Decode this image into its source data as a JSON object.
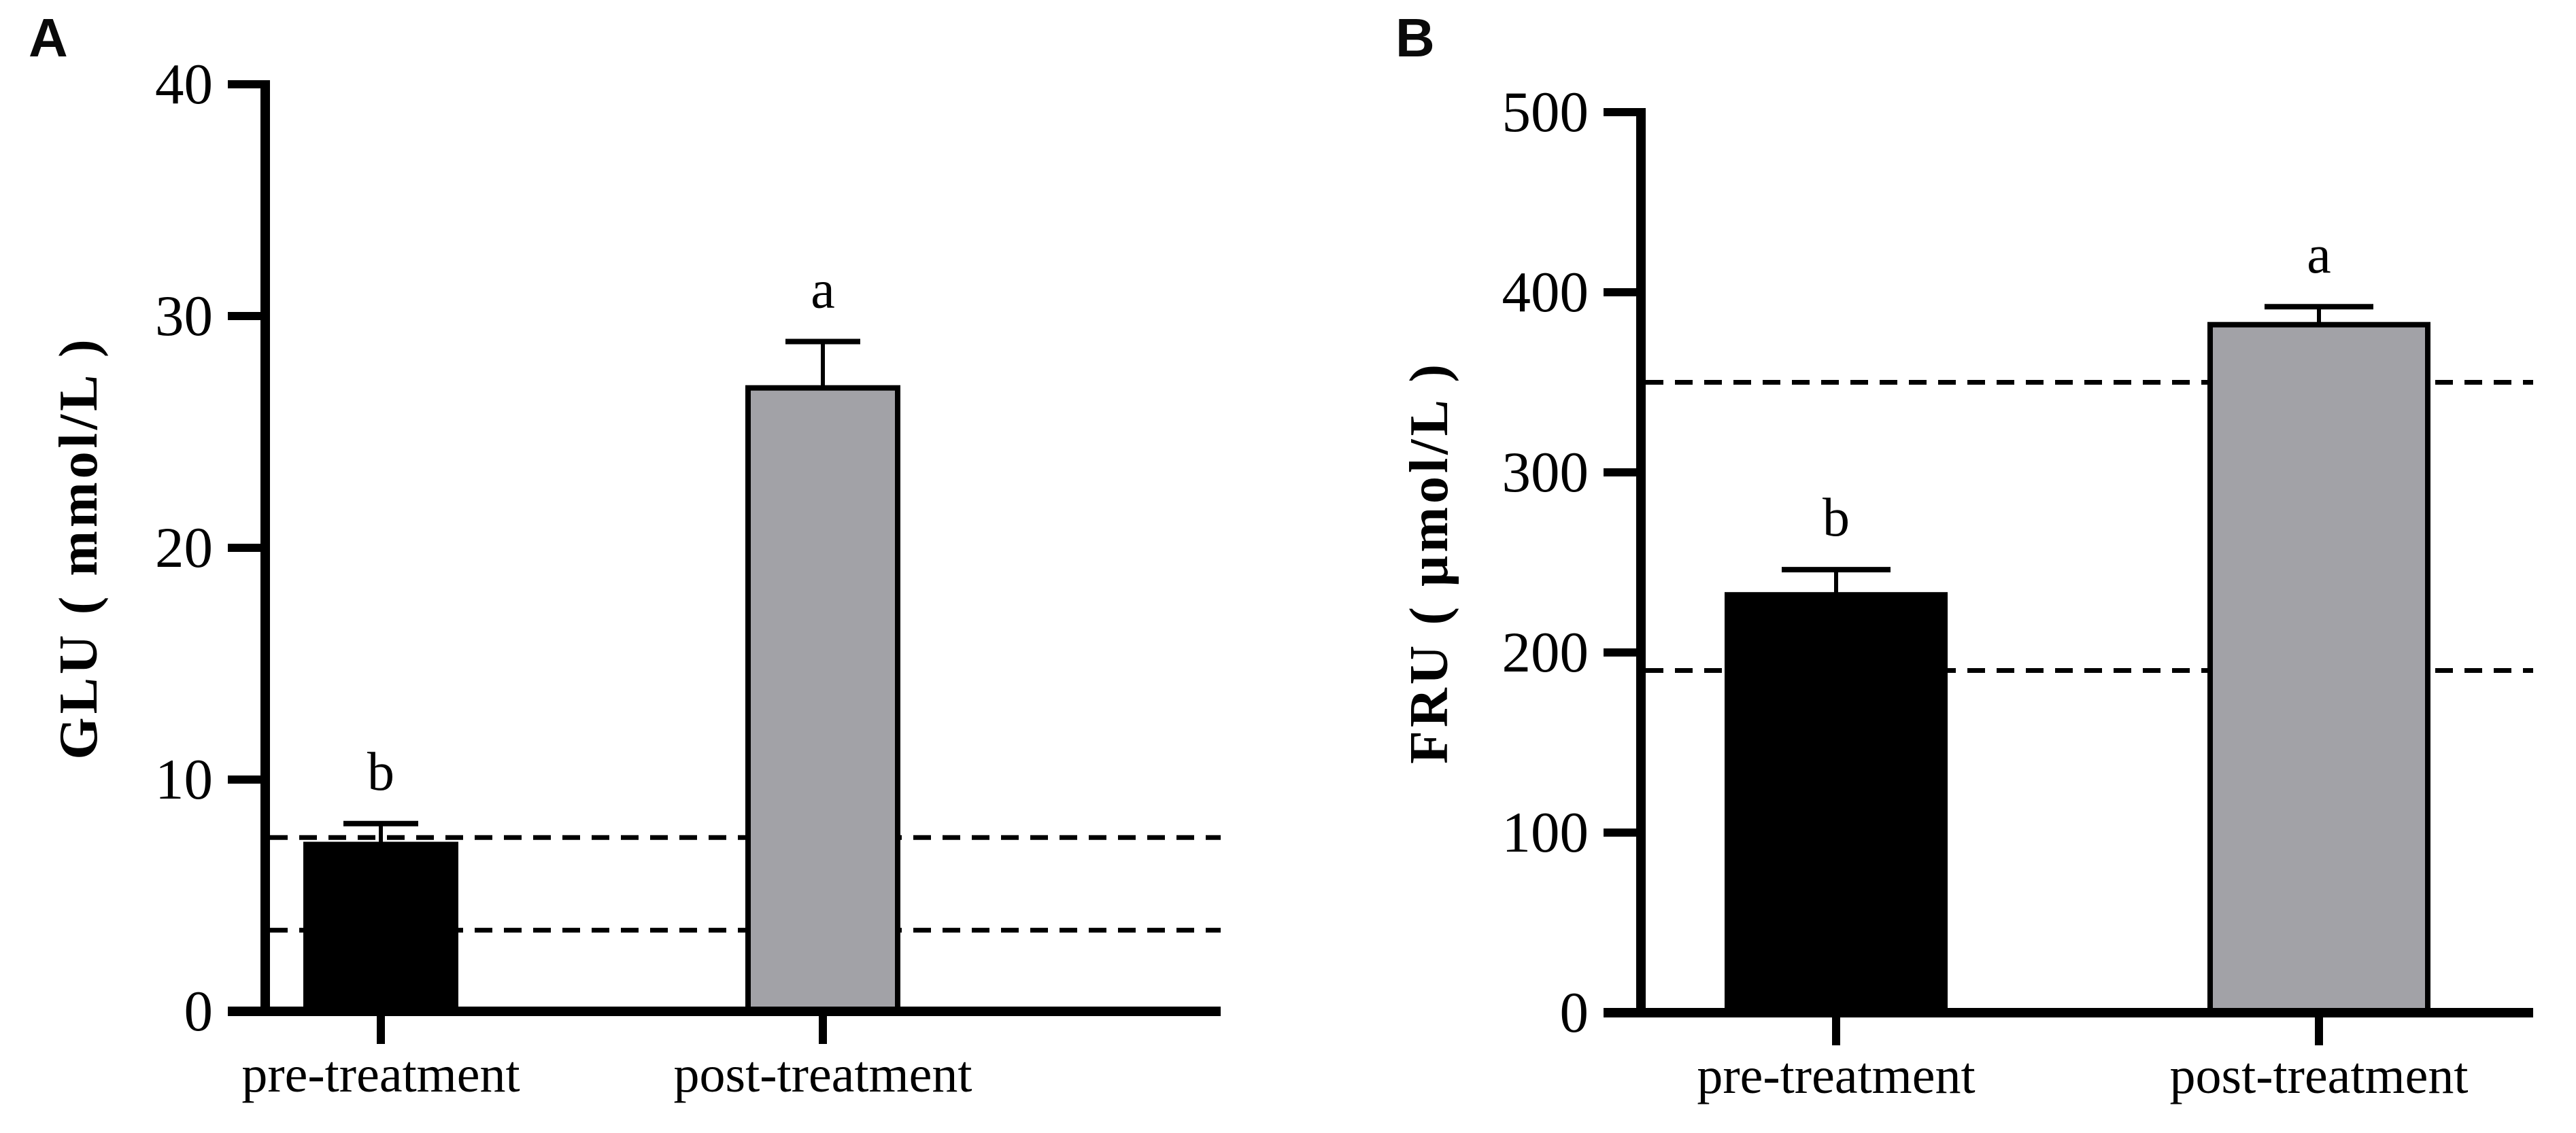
{
  "figure": {
    "background": "#ffffff",
    "axis_color": "#000000"
  },
  "chart_data": [
    {
      "type": "bar",
      "panel_label": "A",
      "title": "",
      "xlabel": "",
      "ylabel": "GLU ( mmol/L )",
      "categories": [
        "pre-treatment",
        "post-treatment"
      ],
      "values": [
        7.2,
        26.9
      ],
      "error_top_caps": [
        8.1,
        28.9
      ],
      "significance_letters": [
        "b",
        "a"
      ],
      "bar_colors": [
        "#000000",
        "#a2a2a7"
      ],
      "bar_edge_color": "#000000",
      "reference_lines_dashed": [
        7.5,
        3.5
      ],
      "ylim": [
        0,
        40
      ],
      "yticks": [
        0,
        10,
        20,
        30,
        40
      ],
      "grid": false,
      "legend": "none"
    },
    {
      "type": "bar",
      "panel_label": "B",
      "title": "",
      "xlabel": "",
      "ylabel": "FRU ( μmol/L )",
      "categories": [
        "pre-treatment",
        "post-treatment"
      ],
      "values": [
        232,
        382
      ],
      "error_top_caps": [
        246,
        392
      ],
      "significance_letters": [
        "b",
        "a"
      ],
      "bar_colors": [
        "#000000",
        "#a2a2a7"
      ],
      "bar_edge_color": "#000000",
      "reference_lines_dashed": [
        350,
        190
      ],
      "ylim": [
        0,
        500
      ],
      "yticks": [
        0,
        100,
        200,
        300,
        400,
        500
      ],
      "grid": false,
      "legend": "none"
    }
  ]
}
